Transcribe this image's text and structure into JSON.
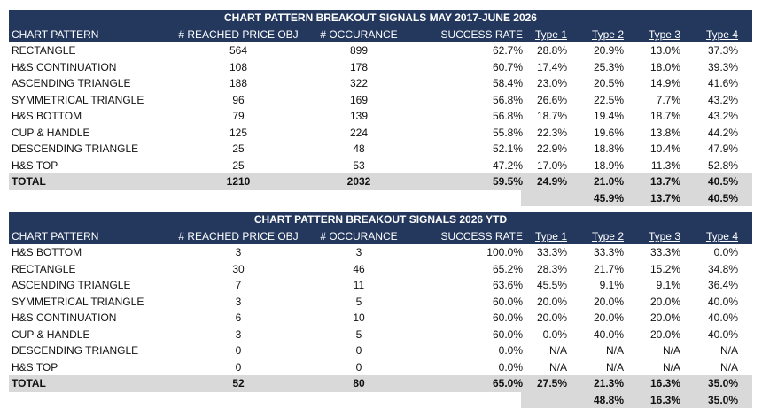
{
  "table1": {
    "title": "CHART PATTERN BREAKOUT SIGNALS MAY 2017-JUNE 2026",
    "headers": [
      "CHART PATTERN",
      "# REACHED PRICE OBJ",
      "# OCCURANCE",
      "SUCCESS RATE",
      "Type 1",
      "Type 2",
      "Type 3",
      "Type 4"
    ],
    "rows": [
      [
        "RECTANGLE",
        "564",
        "899",
        "62.7%",
        "28.8%",
        "20.9%",
        "13.0%",
        "37.3%"
      ],
      [
        "H&S CONTINUATION",
        "108",
        "178",
        "60.7%",
        "17.4%",
        "25.3%",
        "18.0%",
        "39.3%"
      ],
      [
        "ASCENDING TRIANGLE",
        "188",
        "322",
        "58.4%",
        "23.0%",
        "20.5%",
        "14.9%",
        "41.6%"
      ],
      [
        "SYMMETRICAL TRIANGLE",
        "96",
        "169",
        "56.8%",
        "26.6%",
        "22.5%",
        "7.7%",
        "43.2%"
      ],
      [
        "H&S BOTTOM",
        "79",
        "139",
        "56.8%",
        "18.7%",
        "19.4%",
        "18.7%",
        "43.2%"
      ],
      [
        "CUP & HANDLE",
        "125",
        "224",
        "55.8%",
        "22.3%",
        "19.6%",
        "13.8%",
        "44.2%"
      ],
      [
        "DESCENDING TRIANGLE",
        "25",
        "48",
        "52.1%",
        "22.9%",
        "18.8%",
        "10.4%",
        "47.9%"
      ],
      [
        "H&S TOP",
        "25",
        "53",
        "47.2%",
        "17.0%",
        "18.9%",
        "11.3%",
        "52.8%"
      ]
    ],
    "total": [
      "TOTAL",
      "1210",
      "2032",
      "59.5%",
      "24.9%",
      "21.0%",
      "13.7%",
      "40.5%"
    ],
    "group": [
      "45.9%",
      "13.7%",
      "40.5%"
    ]
  },
  "table2": {
    "title": "CHART PATTERN BREAKOUT SIGNALS 2026 YTD",
    "headers": [
      "CHART PATTERN",
      "# REACHED PRICE OBJ",
      "# OCCURANCE",
      "SUCCESS RATE",
      "Type 1",
      "Type 2",
      "Type 3",
      "Type 4"
    ],
    "rows": [
      [
        "H&S BOTTOM",
        "3",
        "3",
        "100.0%",
        "33.3%",
        "33.3%",
        "33.3%",
        "0.0%"
      ],
      [
        "RECTANGLE",
        "30",
        "46",
        "65.2%",
        "28.3%",
        "21.7%",
        "15.2%",
        "34.8%"
      ],
      [
        "ASCENDING TRIANGLE",
        "7",
        "11",
        "63.6%",
        "45.5%",
        "9.1%",
        "9.1%",
        "36.4%"
      ],
      [
        "SYMMETRICAL TRIANGLE",
        "3",
        "5",
        "60.0%",
        "20.0%",
        "20.0%",
        "20.0%",
        "40.0%"
      ],
      [
        "H&S CONTINUATION",
        "6",
        "10",
        "60.0%",
        "20.0%",
        "20.0%",
        "20.0%",
        "40.0%"
      ],
      [
        "CUP & HANDLE",
        "3",
        "5",
        "60.0%",
        "0.0%",
        "40.0%",
        "20.0%",
        "40.0%"
      ],
      [
        "DESCENDING TRIANGLE",
        "0",
        "0",
        "0.0%",
        "N/A",
        "N/A",
        "N/A",
        "N/A"
      ],
      [
        "H&S TOP",
        "0",
        "0",
        "0.0%",
        "N/A",
        "N/A",
        "N/A",
        "N/A"
      ]
    ],
    "total": [
      "TOTAL",
      "52",
      "80",
      "65.0%",
      "27.5%",
      "21.3%",
      "16.3%",
      "35.0%"
    ],
    "group": [
      "48.8%",
      "16.3%",
      "35.0%"
    ]
  },
  "colors": {
    "header_bg": "#24385e",
    "header_text": "#ffffff",
    "total_bg": "#d9d9d9"
  }
}
